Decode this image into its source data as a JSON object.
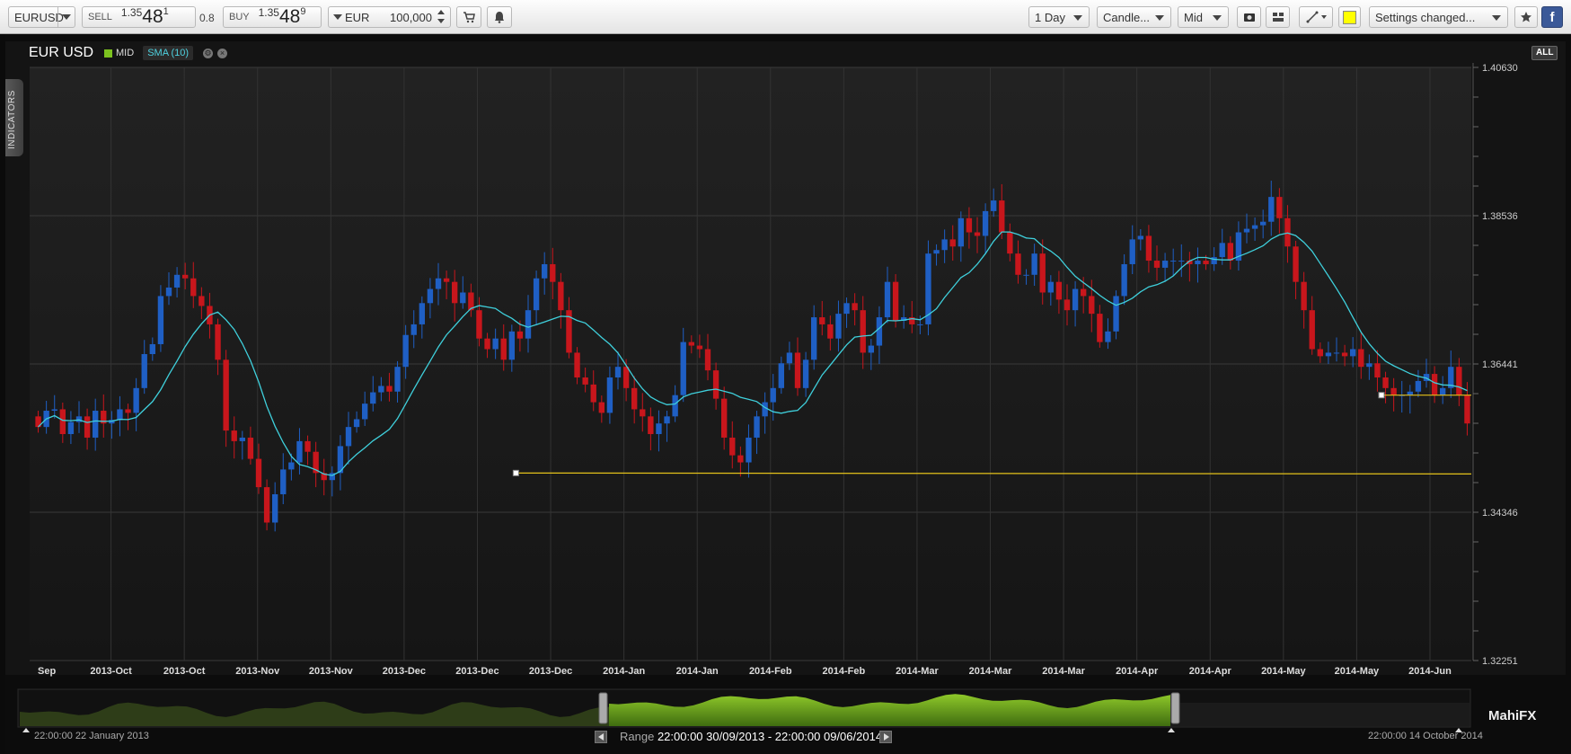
{
  "toolbar": {
    "symbol": "EURUSD",
    "sell_label": "SELL",
    "sell_price_prefix": "1.35",
    "sell_price_big": "48",
    "sell_price_sup": "1",
    "spread": "0.8",
    "buy_label": "BUY",
    "buy_price_prefix": "1.35",
    "buy_price_big": "48",
    "buy_price_sup": "9",
    "currency": "EUR",
    "amount": "100,000",
    "timeframe": "1 Day",
    "chart_type": "Candle...",
    "price_type": "Mid",
    "settings": "Settings changed...",
    "colors": {
      "highlight_swatch": "#ffff00"
    }
  },
  "chart": {
    "pair": "EUR USD",
    "series_label": "MID",
    "indicator_label": "SMA (10)",
    "all_button": "ALL",
    "indicators_tab": "INDICATORS",
    "range_prefix": "Range",
    "range_value": "22:00:00 30/09/2013 - 22:00:00 09/06/2014",
    "date_start": "22:00:00 22 January 2013",
    "date_end": "22:00:00 14 October 2014",
    "logo": "MahiFX",
    "colors": {
      "up": "#1f5fc4",
      "down": "#c8161c",
      "sma": "#3fd0dc",
      "hline": "#e3c11a",
      "navigator": "#6fa51e"
    }
  },
  "chart_data": {
    "type": "candlestick",
    "y_ticks": [
      "1.40630",
      "1.38536",
      "1.36441",
      "1.34346",
      "1.32251"
    ],
    "ylim": [
      1.32251,
      1.4063
    ],
    "x_labels": [
      "Sep",
      "2013-Oct",
      "2013-Oct",
      "2013-Nov",
      "2013-Nov",
      "2013-Dec",
      "2013-Dec",
      "2013-Dec",
      "2014-Jan",
      "2014-Jan",
      "2014-Feb",
      "2014-Feb",
      "2014-Mar",
      "2014-Mar",
      "2014-Mar",
      "2014-Apr",
      "2014-Apr",
      "2014-May",
      "2014-May",
      "2014-Jun"
    ],
    "close": [
      1.3555,
      1.3578,
      1.358,
      1.3545,
      1.3562,
      1.357,
      1.354,
      1.3578,
      1.356,
      1.3565,
      1.358,
      1.3575,
      1.361,
      1.3658,
      1.3672,
      1.374,
      1.3752,
      1.377,
      1.3765,
      1.374,
      1.3726,
      1.37,
      1.365,
      1.355,
      1.3535,
      1.354,
      1.351,
      1.347,
      1.342,
      1.346,
      1.3495,
      1.3505,
      1.3535,
      1.352,
      1.349,
      1.348,
      1.349,
      1.3528,
      1.3555,
      1.3566,
      1.3588,
      1.3604,
      1.3613,
      1.3605,
      1.364,
      1.3685,
      1.37,
      1.373,
      1.375,
      1.3765,
      1.376,
      1.373,
      1.3745,
      1.372,
      1.368,
      1.3665,
      1.368,
      1.365,
      1.369,
      1.368,
      1.372,
      1.3765,
      1.3785,
      1.376,
      1.372,
      1.366,
      1.3625,
      1.3615,
      1.359,
      1.3575,
      1.3625,
      1.364,
      1.361,
      1.358,
      1.357,
      1.3545,
      1.356,
      1.357,
      1.36,
      1.3675,
      1.367,
      1.3665,
      1.3635,
      1.3595,
      1.354,
      1.3515,
      1.3505,
      1.354,
      1.357,
      1.359,
      1.361,
      1.3645,
      1.366,
      1.361,
      1.365,
      1.371,
      1.37,
      1.368,
      1.3715,
      1.373,
      1.372,
      1.366,
      1.367,
      1.371,
      1.376,
      1.3705,
      1.371,
      1.37,
      1.37,
      1.38,
      1.3805,
      1.382,
      1.381,
      1.385,
      1.383,
      1.3825,
      1.386,
      1.3875,
      1.383,
      1.38,
      1.377,
      1.377,
      1.38,
      1.3745,
      1.376,
      1.3735,
      1.372,
      1.375,
      1.374,
      1.3715,
      1.3675,
      1.369,
      1.374,
      1.3785,
      1.382,
      1.3825,
      1.379,
      1.378,
      1.379,
      1.379,
      1.379,
      1.3785,
      1.379,
      1.3785,
      1.3795,
      1.3815,
      1.379,
      1.383,
      1.3835,
      1.384,
      1.3845,
      1.388,
      1.385,
      1.381,
      1.376,
      1.372,
      1.3665,
      1.3655,
      1.366,
      1.366,
      1.3655,
      1.3665,
      1.364,
      1.3645,
      1.3625,
      1.361,
      1.36,
      1.36,
      1.3605,
      1.362,
      1.363,
      1.36,
      1.361,
      1.364,
      1.36,
      1.356
    ]
  },
  "annotations": {
    "hline1_level": 1.349,
    "hline2_level": 1.36
  }
}
